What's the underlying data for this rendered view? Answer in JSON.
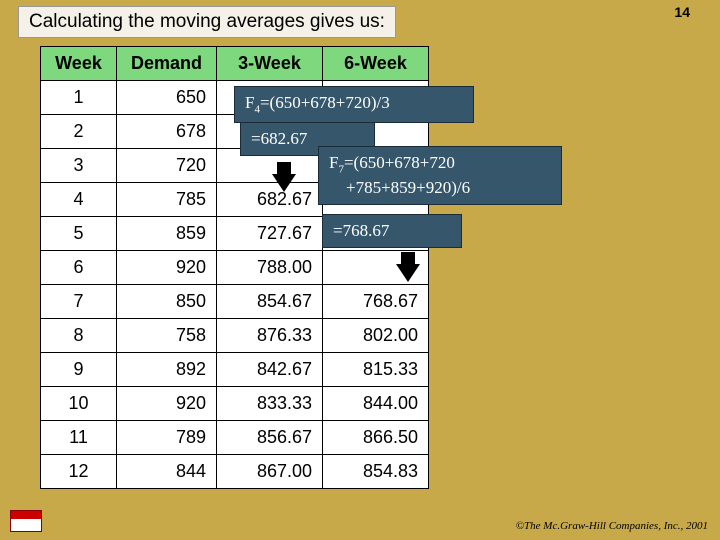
{
  "page": {
    "title": "Calculating the moving averages gives us:",
    "number": "14",
    "copyright": "©The Mc.Graw-Hill Companies, Inc., 2001"
  },
  "table": {
    "headers": {
      "week": "Week",
      "demand": "Demand",
      "w3": "3-Week",
      "w6": "6-Week"
    },
    "rows": [
      {
        "week": "1",
        "demand": "650",
        "w3": "",
        "w6": ""
      },
      {
        "week": "2",
        "demand": "678",
        "w3": "",
        "w6": ""
      },
      {
        "week": "3",
        "demand": "720",
        "w3": "",
        "w6": ""
      },
      {
        "week": "4",
        "demand": "785",
        "w3": "682.67",
        "w6": ""
      },
      {
        "week": "5",
        "demand": "859",
        "w3": "727.67",
        "w6": ""
      },
      {
        "week": "6",
        "demand": "920",
        "w3": "788.00",
        "w6": ""
      },
      {
        "week": "7",
        "demand": "850",
        "w3": "854.67",
        "w6": "768.67"
      },
      {
        "week": "8",
        "demand": "758",
        "w3": "876.33",
        "w6": "802.00"
      },
      {
        "week": "9",
        "demand": "892",
        "w3": "842.67",
        "w6": "815.33"
      },
      {
        "week": "10",
        "demand": "920",
        "w3": "833.33",
        "w6": "844.00"
      },
      {
        "week": "11",
        "demand": "789",
        "w3": "856.67",
        "w6": "866.50"
      },
      {
        "week": "12",
        "demand": "844",
        "w3": "867.00",
        "w6": "854.83"
      }
    ]
  },
  "callouts": {
    "c1_pre": "F",
    "c1_sub": "4",
    "c1_post": "=(650+678+720)/3",
    "c2": "=682.67",
    "c3_pre": "F",
    "c3_sub": "7",
    "c3_line1": "=(650+678+720",
    "c3_line2": "+785+859+920)/6",
    "c4": "=768.67"
  }
}
